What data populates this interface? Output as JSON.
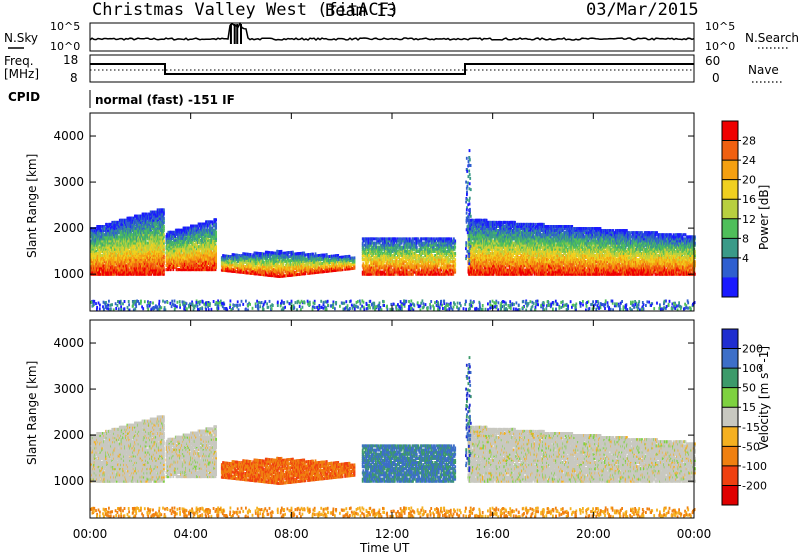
{
  "header": {
    "title": "Christmas Valley West (fitACF)",
    "beam": "Beam 13",
    "date": "03/Mar/2015"
  },
  "top_panels": {
    "nsky_label": "N.Sky",
    "nsky_ticks": [
      "10^5",
      "10^0"
    ],
    "nsearch_label": "N.Search",
    "nsearch_ticks": [
      "10^5",
      "10^0"
    ],
    "freq_label": "Freq.",
    "freq_unit": "[MHz]",
    "freq_ticks": [
      "18",
      "8"
    ],
    "nave_label": "Nave",
    "nave_ticks": [
      "60",
      "0"
    ],
    "cpid_label": "CPID",
    "cpid_value": "normal (fast) -151 IF"
  },
  "chart_data": [
    {
      "type": "heatmap",
      "name": "power",
      "ylabel": "Slant Range [km]",
      "xlabel": "Time UT",
      "xlim": [
        0,
        24
      ],
      "ylim": [
        200,
        4500
      ],
      "xticks": [
        "00:00",
        "04:00",
        "08:00",
        "12:00",
        "16:00",
        "20:00",
        "00:00"
      ],
      "yticks": [
        1000,
        2000,
        3000,
        4000
      ],
      "colorbar": {
        "label": "Power [dB]",
        "ticks": [
          4,
          8,
          12,
          16,
          20,
          24,
          28
        ],
        "range": [
          0,
          32
        ],
        "colors": [
          "#1a1aff",
          "#2f5fcf",
          "#3a9a88",
          "#4fbf5a",
          "#b8d040",
          "#f0d020",
          "#f5a010",
          "#f06010",
          "#ef0000"
        ]
      }
    },
    {
      "type": "heatmap",
      "name": "velocity",
      "ylabel": "Slant Range [km]",
      "xlabel": "Time UT",
      "xlim": [
        0,
        24
      ],
      "ylim": [
        200,
        4500
      ],
      "xticks": [
        "00:00",
        "04:00",
        "08:00",
        "12:00",
        "16:00",
        "20:00",
        "00:00"
      ],
      "yticks": [
        1000,
        2000,
        3000,
        4000
      ],
      "colorbar": {
        "label": "Velocity [m s^-1]",
        "ticks": [
          "200",
          "100",
          "50",
          "15",
          "-15",
          "-50",
          "-100",
          "-200"
        ],
        "colors": [
          "#1f2ed0",
          "#3d6fc8",
          "#3c9a6a",
          "#7ed240",
          "#c8c8c0",
          "#f5b020",
          "#f08010",
          "#f04010",
          "#e00000"
        ]
      }
    }
  ]
}
